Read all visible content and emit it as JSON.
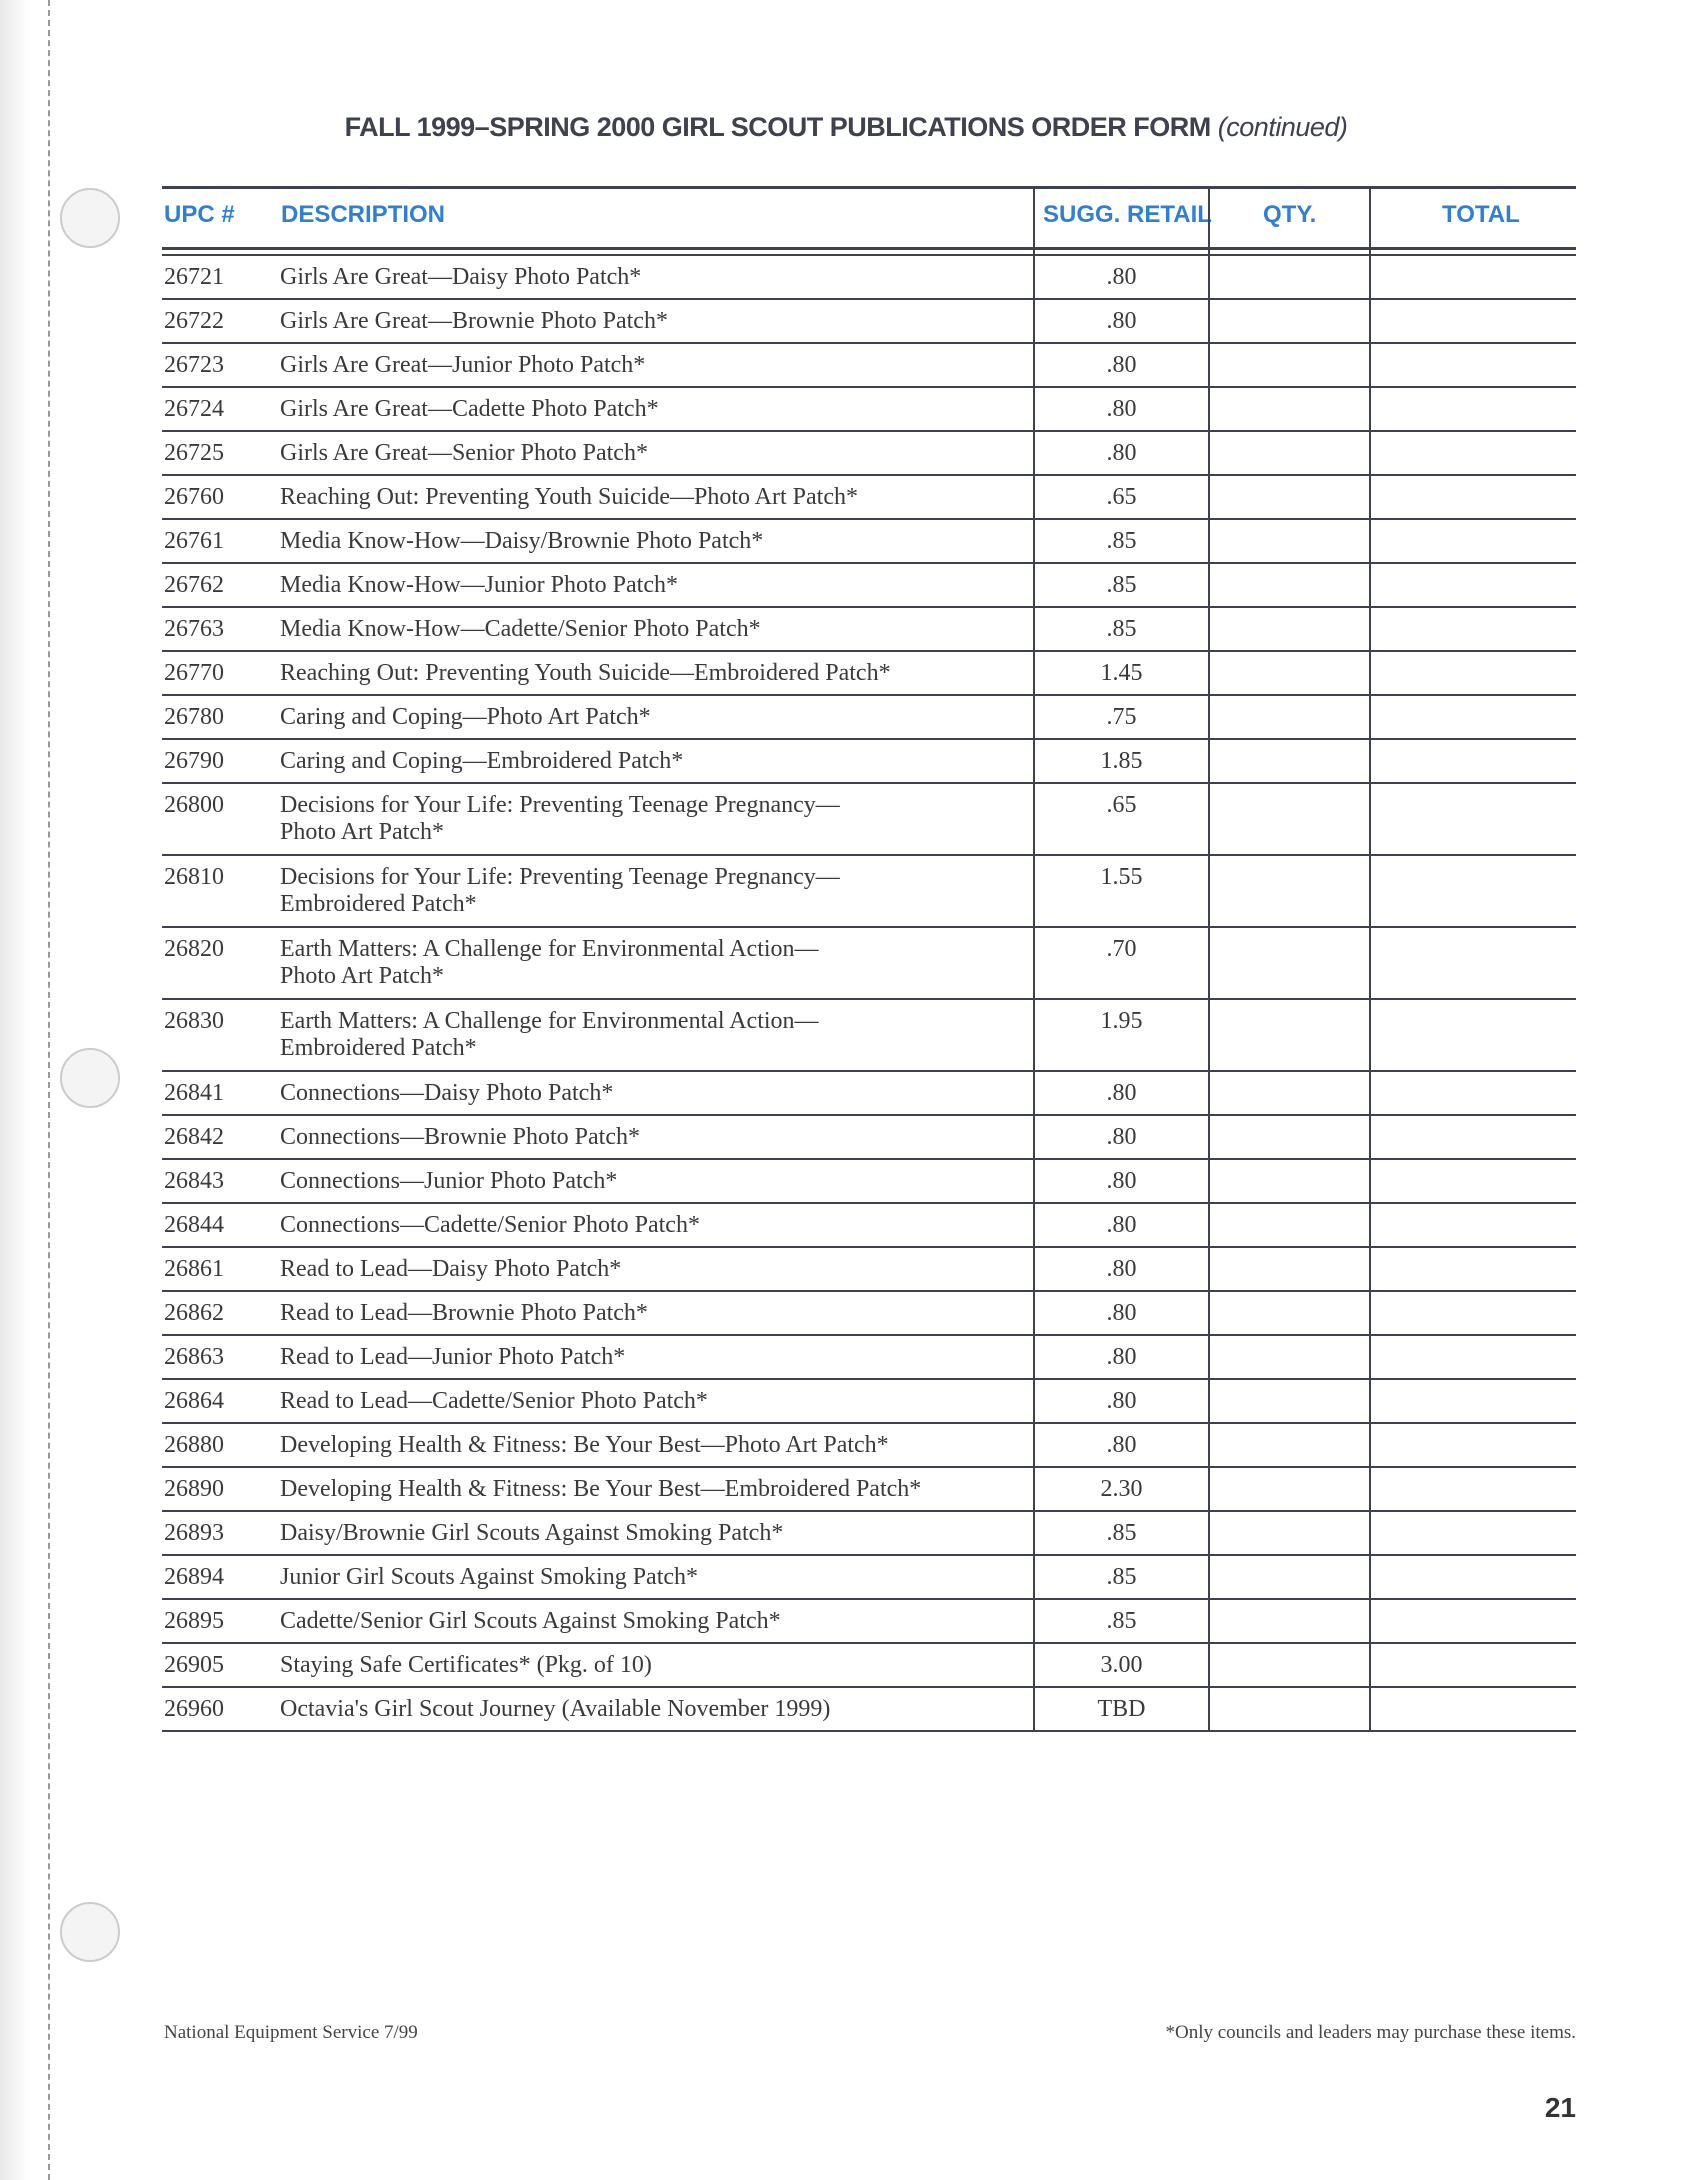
{
  "title": {
    "main": "FALL 1999–SPRING 2000 GIRL SCOUT PUBLICATIONS ORDER FORM",
    "suffix": "(continued)"
  },
  "columns": {
    "upc": "UPC #",
    "description": "DESCRIPTION",
    "retail": "SUGG. RETAIL",
    "qty": "QTY.",
    "total": "TOTAL"
  },
  "rows": [
    {
      "upc": "26721",
      "desc": [
        "Girls Are Great—Daisy Photo Patch*"
      ],
      "price": ".80"
    },
    {
      "upc": "26722",
      "desc": [
        "Girls Are Great—Brownie Photo Patch*"
      ],
      "price": ".80"
    },
    {
      "upc": "26723",
      "desc": [
        "Girls Are Great—Junior Photo Patch*"
      ],
      "price": ".80"
    },
    {
      "upc": "26724",
      "desc": [
        "Girls Are Great—Cadette Photo Patch*"
      ],
      "price": ".80"
    },
    {
      "upc": "26725",
      "desc": [
        "Girls Are Great—Senior Photo Patch*"
      ],
      "price": ".80"
    },
    {
      "upc": "26760",
      "desc": [
        "Reaching Out: Preventing Youth Suicide—Photo Art Patch*"
      ],
      "price": ".65"
    },
    {
      "upc": "26761",
      "desc": [
        "Media Know-How—Daisy/Brownie Photo Patch*"
      ],
      "price": ".85"
    },
    {
      "upc": "26762",
      "desc": [
        "Media Know-How—Junior Photo Patch*"
      ],
      "price": ".85"
    },
    {
      "upc": "26763",
      "desc": [
        "Media Know-How—Cadette/Senior Photo Patch*"
      ],
      "price": ".85"
    },
    {
      "upc": "26770",
      "desc": [
        "Reaching Out: Preventing Youth Suicide—Embroidered Patch*"
      ],
      "price": "1.45"
    },
    {
      "upc": "26780",
      "desc": [
        "Caring and Coping—Photo Art Patch*"
      ],
      "price": ".75"
    },
    {
      "upc": "26790",
      "desc": [
        "Caring and Coping—Embroidered Patch*"
      ],
      "price": "1.85"
    },
    {
      "upc": "26800",
      "desc": [
        "Decisions for Your Life: Preventing Teenage Pregnancy—",
        "Photo Art Patch*"
      ],
      "price": ".65"
    },
    {
      "upc": "26810",
      "desc": [
        "Decisions for Your Life: Preventing Teenage Pregnancy—",
        "Embroidered Patch*"
      ],
      "price": "1.55"
    },
    {
      "upc": "26820",
      "desc": [
        "Earth Matters: A Challenge for Environmental Action—",
        "Photo Art Patch*"
      ],
      "price": ".70"
    },
    {
      "upc": "26830",
      "desc": [
        "Earth Matters: A Challenge for Environmental Action—",
        "Embroidered Patch*"
      ],
      "price": "1.95"
    },
    {
      "upc": "26841",
      "desc": [
        "Connections—Daisy Photo Patch*"
      ],
      "price": ".80"
    },
    {
      "upc": "26842",
      "desc": [
        "Connections—Brownie Photo Patch*"
      ],
      "price": ".80"
    },
    {
      "upc": "26843",
      "desc": [
        "Connections—Junior Photo Patch*"
      ],
      "price": ".80"
    },
    {
      "upc": "26844",
      "desc": [
        "Connections—Cadette/Senior Photo Patch*"
      ],
      "price": ".80"
    },
    {
      "upc": "26861",
      "desc": [
        "Read to Lead—Daisy Photo Patch*"
      ],
      "price": ".80"
    },
    {
      "upc": "26862",
      "desc": [
        "Read to Lead—Brownie Photo Patch*"
      ],
      "price": ".80"
    },
    {
      "upc": "26863",
      "desc": [
        "Read to Lead—Junior Photo Patch*"
      ],
      "price": ".80"
    },
    {
      "upc": "26864",
      "desc": [
        "Read to Lead—Cadette/Senior Photo Patch*"
      ],
      "price": ".80"
    },
    {
      "upc": "26880",
      "desc": [
        "Developing Health & Fitness: Be Your Best—Photo Art Patch*"
      ],
      "price": ".80"
    },
    {
      "upc": "26890",
      "desc": [
        "Developing Health & Fitness: Be Your Best—Embroidered Patch*"
      ],
      "price": "2.30"
    },
    {
      "upc": "26893",
      "desc": [
        "Daisy/Brownie Girl Scouts Against Smoking Patch*"
      ],
      "price": ".85"
    },
    {
      "upc": "26894",
      "desc": [
        "Junior Girl Scouts Against Smoking Patch*"
      ],
      "price": ".85"
    },
    {
      "upc": "26895",
      "desc": [
        "Cadette/Senior Girl Scouts Against Smoking Patch*"
      ],
      "price": ".85"
    },
    {
      "upc": "26905",
      "desc": [
        "Staying Safe Certificates* (Pkg. of 10)"
      ],
      "price": "3.00"
    },
    {
      "upc": "26960",
      "desc": [
        "Octavia's Girl Scout Journey (Available November 1999)"
      ],
      "price": "TBD"
    }
  ],
  "footer": {
    "left": "National Equipment Service 7/99",
    "right": "*Only councils and leaders may purchase these items.",
    "page": "21"
  },
  "colors": {
    "header": "#2f7fd8",
    "rule": "#3d4150"
  }
}
